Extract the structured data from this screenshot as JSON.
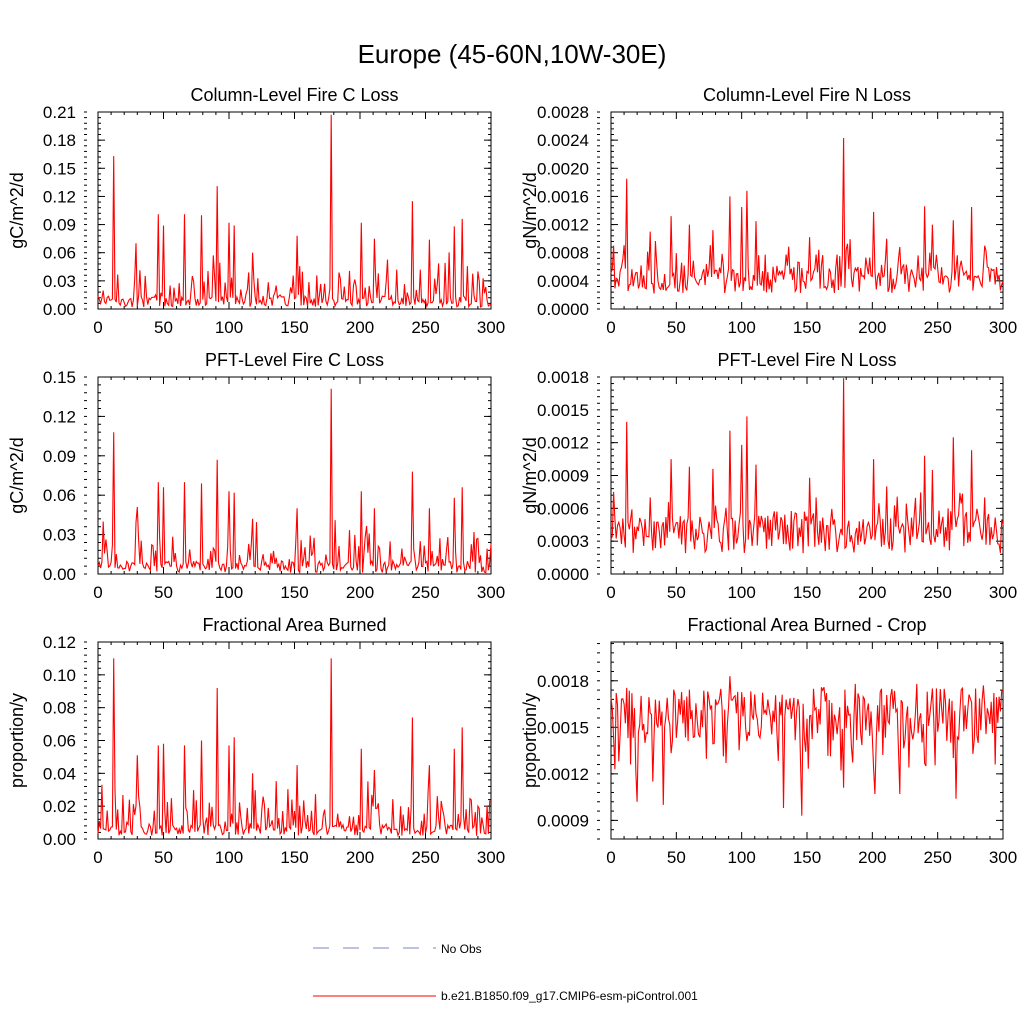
{
  "title": "Europe (45-60N,10W-30E)",
  "colors": {
    "series": "#ff0000",
    "obs": "#7b86c6",
    "axis": "#000000"
  },
  "legend": {
    "obs_label": "No Obs",
    "model_label": "b.e21.B1850.f09_g17.CMIP6-esm-piControl.001"
  },
  "chart_data": [
    {
      "type": "line",
      "title": "Column-Level Fire C Loss",
      "ylabel": "gC/m^2/d",
      "xlabel": "",
      "xlim": [
        0,
        300
      ],
      "ylim": [
        0,
        0.21
      ],
      "x_ticks": [
        "0",
        "50",
        "100",
        "150",
        "200",
        "250",
        "300"
      ],
      "y_ticks": [
        "0.00",
        "0.03",
        "0.06",
        "0.09",
        "0.12",
        "0.15",
        "0.18",
        "0.21"
      ],
      "series": [
        {
          "name": "b.e21.B1850.f09_g17.CMIP6-esm-piControl.001",
          "base": 0.012,
          "noise": 0.022,
          "floor": 0.002,
          "spikes": [
            [
              12,
              0.163
            ],
            [
              29,
              0.07
            ],
            [
              46,
              0.101
            ],
            [
              50,
              0.089
            ],
            [
              66,
              0.101
            ],
            [
              79,
              0.1
            ],
            [
              91,
              0.131
            ],
            [
              100,
              0.092
            ],
            [
              104,
              0.089
            ],
            [
              118,
              0.06
            ],
            [
              152,
              0.078
            ],
            [
              178,
              0.207
            ],
            [
              201,
              0.092
            ],
            [
              211,
              0.075
            ],
            [
              240,
              0.115
            ],
            [
              253,
              0.074
            ],
            [
              272,
              0.088
            ],
            [
              278,
              0.096
            ],
            [
              290,
              0.04
            ]
          ]
        }
      ]
    },
    {
      "type": "line",
      "title": "Column-Level Fire N Loss",
      "ylabel": "gN/m^2/d",
      "xlabel": "",
      "xlim": [
        0,
        300
      ],
      "ylim": [
        0,
        0.0028
      ],
      "x_ticks": [
        "0",
        "50",
        "100",
        "150",
        "200",
        "250",
        "300"
      ],
      "y_ticks": [
        "0.0000",
        "0.0004",
        "0.0008",
        "0.0012",
        "0.0016",
        "0.0020",
        "0.0024",
        "0.0028"
      ],
      "series": [
        {
          "name": "b.e21.B1850.f09_g17.CMIP6-esm-piControl.001",
          "base": 0.00038,
          "noise": 0.00022,
          "floor": 0.00022,
          "spikes": [
            [
              2,
              0.0009
            ],
            [
              12,
              0.00185
            ],
            [
              30,
              0.0011
            ],
            [
              46,
              0.00132
            ],
            [
              60,
              0.0012
            ],
            [
              78,
              0.00112
            ],
            [
              91,
              0.0016
            ],
            [
              100,
              0.00145
            ],
            [
              104,
              0.00168
            ],
            [
              111,
              0.00125
            ],
            [
              152,
              0.00102
            ],
            [
              178,
              0.00243
            ],
            [
              201,
              0.00138
            ],
            [
              211,
              0.001
            ],
            [
              240,
              0.00146
            ],
            [
              246,
              0.0012
            ],
            [
              262,
              0.00126
            ],
            [
              276,
              0.00145
            ],
            [
              286,
              0.0009
            ]
          ]
        }
      ]
    },
    {
      "type": "line",
      "title": "PFT-Level Fire C Loss",
      "ylabel": "gC/m^2/d",
      "xlabel": "",
      "xlim": [
        0,
        300
      ],
      "ylim": [
        0,
        0.15
      ],
      "x_ticks": [
        "0",
        "50",
        "100",
        "150",
        "200",
        "250",
        "300"
      ],
      "y_ticks": [
        "0.00",
        "0.03",
        "0.06",
        "0.09",
        "0.12",
        "0.15"
      ],
      "series": [
        {
          "name": "b.e21.B1850.f09_g17.CMIP6-esm-piControl.001",
          "base": 0.009,
          "noise": 0.016,
          "floor": 0.001,
          "spikes": [
            [
              4,
              0.04
            ],
            [
              12,
              0.108
            ],
            [
              30,
              0.051
            ],
            [
              46,
              0.07
            ],
            [
              50,
              0.066
            ],
            [
              66,
              0.07
            ],
            [
              79,
              0.069
            ],
            [
              91,
              0.087
            ],
            [
              100,
              0.063
            ],
            [
              104,
              0.062
            ],
            [
              118,
              0.042
            ],
            [
              152,
              0.05
            ],
            [
              178,
              0.141
            ],
            [
              201,
              0.063
            ],
            [
              211,
              0.05
            ],
            [
              240,
              0.078
            ],
            [
              253,
              0.05
            ],
            [
              272,
              0.058
            ],
            [
              278,
              0.066
            ],
            [
              290,
              0.027
            ]
          ]
        }
      ]
    },
    {
      "type": "line",
      "title": "PFT-Level Fire N Loss",
      "ylabel": "gN/m^2/d",
      "xlabel": "",
      "xlim": [
        0,
        300
      ],
      "ylim": [
        0,
        0.0018
      ],
      "x_ticks": [
        "0",
        "50",
        "100",
        "150",
        "200",
        "250",
        "300"
      ],
      "y_ticks": [
        "0.0000",
        "0.0003",
        "0.0006",
        "0.0009",
        "0.0012",
        "0.0015",
        "0.0018"
      ],
      "series": [
        {
          "name": "b.e21.B1850.f09_g17.CMIP6-esm-piControl.001",
          "base": 0.00034,
          "noise": 0.00018,
          "floor": 0.00019,
          "spikes": [
            [
              2,
              0.00075
            ],
            [
              12,
              0.00139
            ],
            [
              30,
              0.0007
            ],
            [
              46,
              0.00105
            ],
            [
              60,
              0.00098
            ],
            [
              78,
              0.00096
            ],
            [
              91,
              0.00131
            ],
            [
              100,
              0.00118
            ],
            [
              104,
              0.00144
            ],
            [
              111,
              0.001
            ],
            [
              152,
              0.00088
            ],
            [
              178,
              0.00179
            ],
            [
              201,
              0.00105
            ],
            [
              211,
              0.0008
            ],
            [
              240,
              0.00108
            ],
            [
              246,
              0.00095
            ],
            [
              262,
              0.00125
            ],
            [
              276,
              0.00113
            ],
            [
              286,
              0.0007
            ]
          ]
        }
      ]
    },
    {
      "type": "line",
      "title": "Fractional Area Burned",
      "ylabel": "proportion/y",
      "xlabel": "",
      "xlim": [
        0,
        300
      ],
      "ylim": [
        0,
        0.12
      ],
      "x_ticks": [
        "0",
        "50",
        "100",
        "150",
        "200",
        "250",
        "300"
      ],
      "y_ticks": [
        "0.00",
        "0.02",
        "0.04",
        "0.06",
        "0.08",
        "0.10",
        "0.12"
      ],
      "series": [
        {
          "name": "b.e21.B1850.f09_g17.CMIP6-esm-piControl.001",
          "base": 0.007,
          "noise": 0.013,
          "floor": 0.002,
          "spikes": [
            [
              3,
              0.033
            ],
            [
              12,
              0.11
            ],
            [
              30,
              0.051
            ],
            [
              46,
              0.057
            ],
            [
              50,
              0.058
            ],
            [
              66,
              0.057
            ],
            [
              79,
              0.06
            ],
            [
              91,
              0.092
            ],
            [
              100,
              0.057
            ],
            [
              104,
              0.062
            ],
            [
              118,
              0.04
            ],
            [
              152,
              0.045
            ],
            [
              178,
              0.11
            ],
            [
              201,
              0.055
            ],
            [
              211,
              0.042
            ],
            [
              240,
              0.074
            ],
            [
              253,
              0.045
            ],
            [
              272,
              0.055
            ],
            [
              278,
              0.068
            ],
            [
              290,
              0.02
            ]
          ]
        }
      ]
    },
    {
      "type": "line",
      "title": "Fractional Area Burned - Crop",
      "ylabel": "proportion/y",
      "xlabel": "",
      "xlim": [
        0,
        300
      ],
      "ylim": [
        0.00078,
        0.00205
      ],
      "x_ticks": [
        "0",
        "50",
        "100",
        "150",
        "200",
        "250",
        "300"
      ],
      "y_ticks": [
        "0.0009",
        "0.0012",
        "0.0015",
        "0.0018"
      ],
      "y_tick_values": [
        0.0009,
        0.0012,
        0.0015,
        0.0018
      ],
      "series": [
        {
          "name": "b.e21.B1850.f09_g17.CMIP6-esm-piControl.001",
          "base": 0.00158,
          "noise": 0.00018,
          "floor": 0.0013,
          "mode": "band",
          "spikes": [
            [
              15,
              0.00126
            ],
            [
              20,
              0.00102
            ],
            [
              32,
              0.00115
            ],
            [
              40,
              0.001
            ],
            [
              88,
              0.00127
            ],
            [
              132,
              0.00098
            ],
            [
              146,
              0.00093
            ],
            [
              178,
              0.00111
            ],
            [
              202,
              0.00107
            ],
            [
              221,
              0.00107
            ],
            [
              264,
              0.00104
            ],
            [
              294,
              0.00126
            ],
            [
              91,
              0.00183
            ],
            [
              187,
              0.00178
            ],
            [
              234,
              0.00178
            ],
            [
              285,
              0.00177
            ]
          ]
        }
      ]
    }
  ]
}
